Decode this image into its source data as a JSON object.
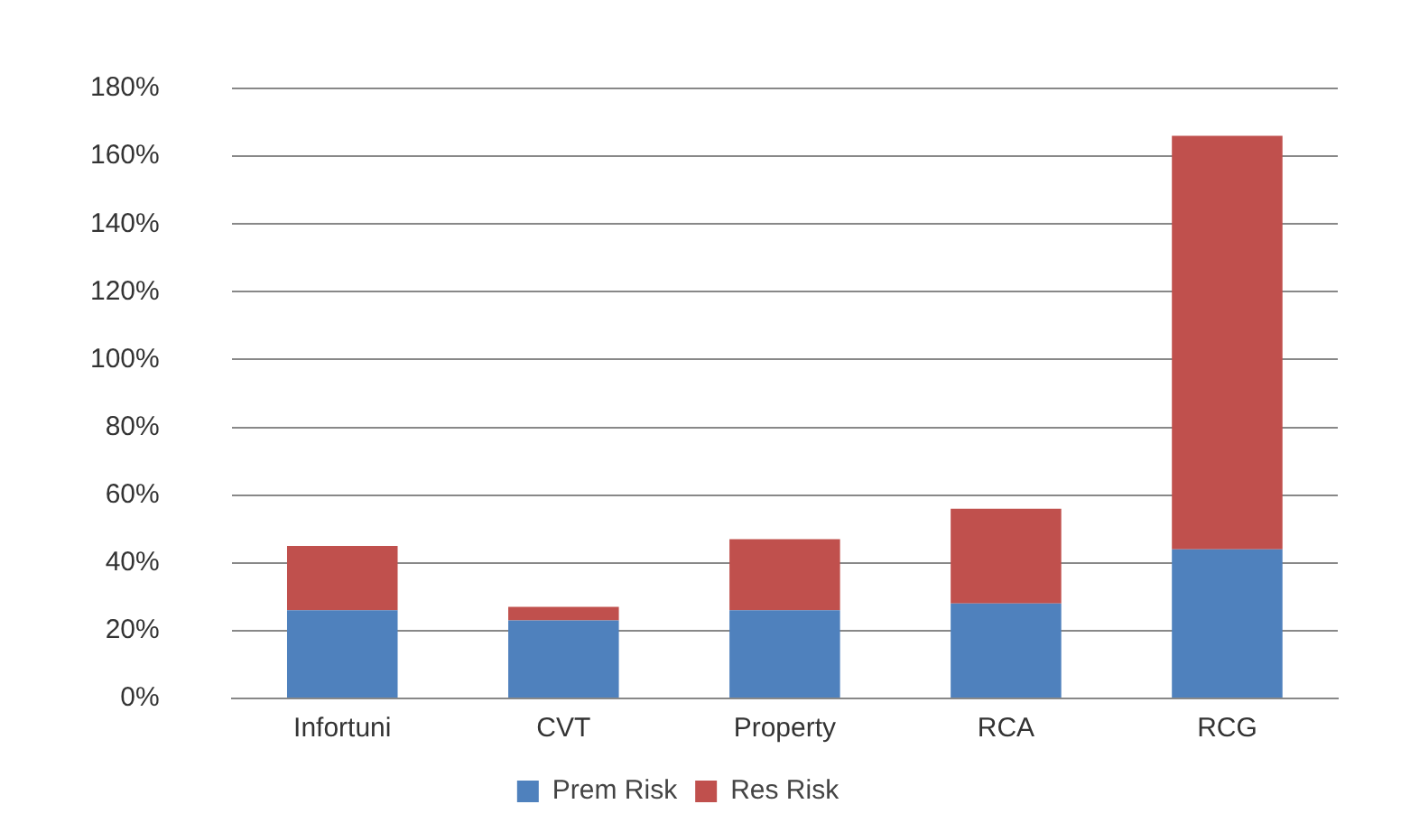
{
  "chart_data": {
    "type": "bar",
    "stacked": true,
    "categories": [
      "Infortuni",
      "CVT",
      "Property",
      "RCA",
      "RCG"
    ],
    "series": [
      {
        "name": "Prem Risk",
        "color": "#4f81bd",
        "values": [
          26,
          23,
          26,
          28,
          44
        ]
      },
      {
        "name": "Res Risk",
        "color": "#c0504d",
        "values": [
          19,
          4,
          21,
          28,
          122
        ]
      }
    ],
    "ylim": [
      0,
      180
    ],
    "yticks": [
      {
        "value": 0,
        "label": "0%"
      },
      {
        "value": 20,
        "label": "20%"
      },
      {
        "value": 40,
        "label": "40%"
      },
      {
        "value": 60,
        "label": "60%"
      },
      {
        "value": 80,
        "label": "80%"
      },
      {
        "value": 100,
        "label": "100%"
      },
      {
        "value": 120,
        "label": "120%"
      },
      {
        "value": 140,
        "label": "140%"
      },
      {
        "value": 160,
        "label": "160%"
      },
      {
        "value": 180,
        "label": "180%"
      }
    ],
    "grid": "y",
    "legend": "bottom"
  }
}
